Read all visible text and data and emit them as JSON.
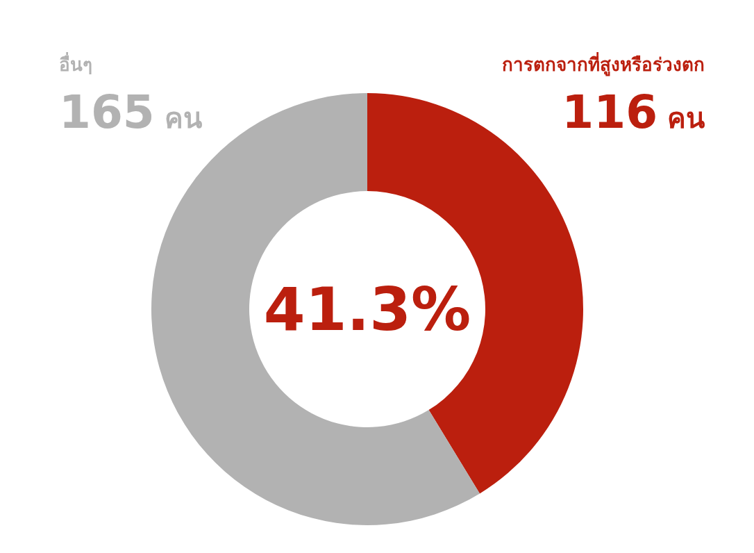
{
  "chart_data": {
    "type": "donut",
    "categories": [
      "การตกจากที่สูงหรือร่วงตก",
      "อื่นๆ"
    ],
    "values": [
      116,
      165
    ],
    "colors": [
      "#bb1f0e",
      "#b2b2b2"
    ],
    "value_labels": [
      "116 คน",
      "165 คน"
    ],
    "annotations": [
      "41.3%"
    ]
  }
}
